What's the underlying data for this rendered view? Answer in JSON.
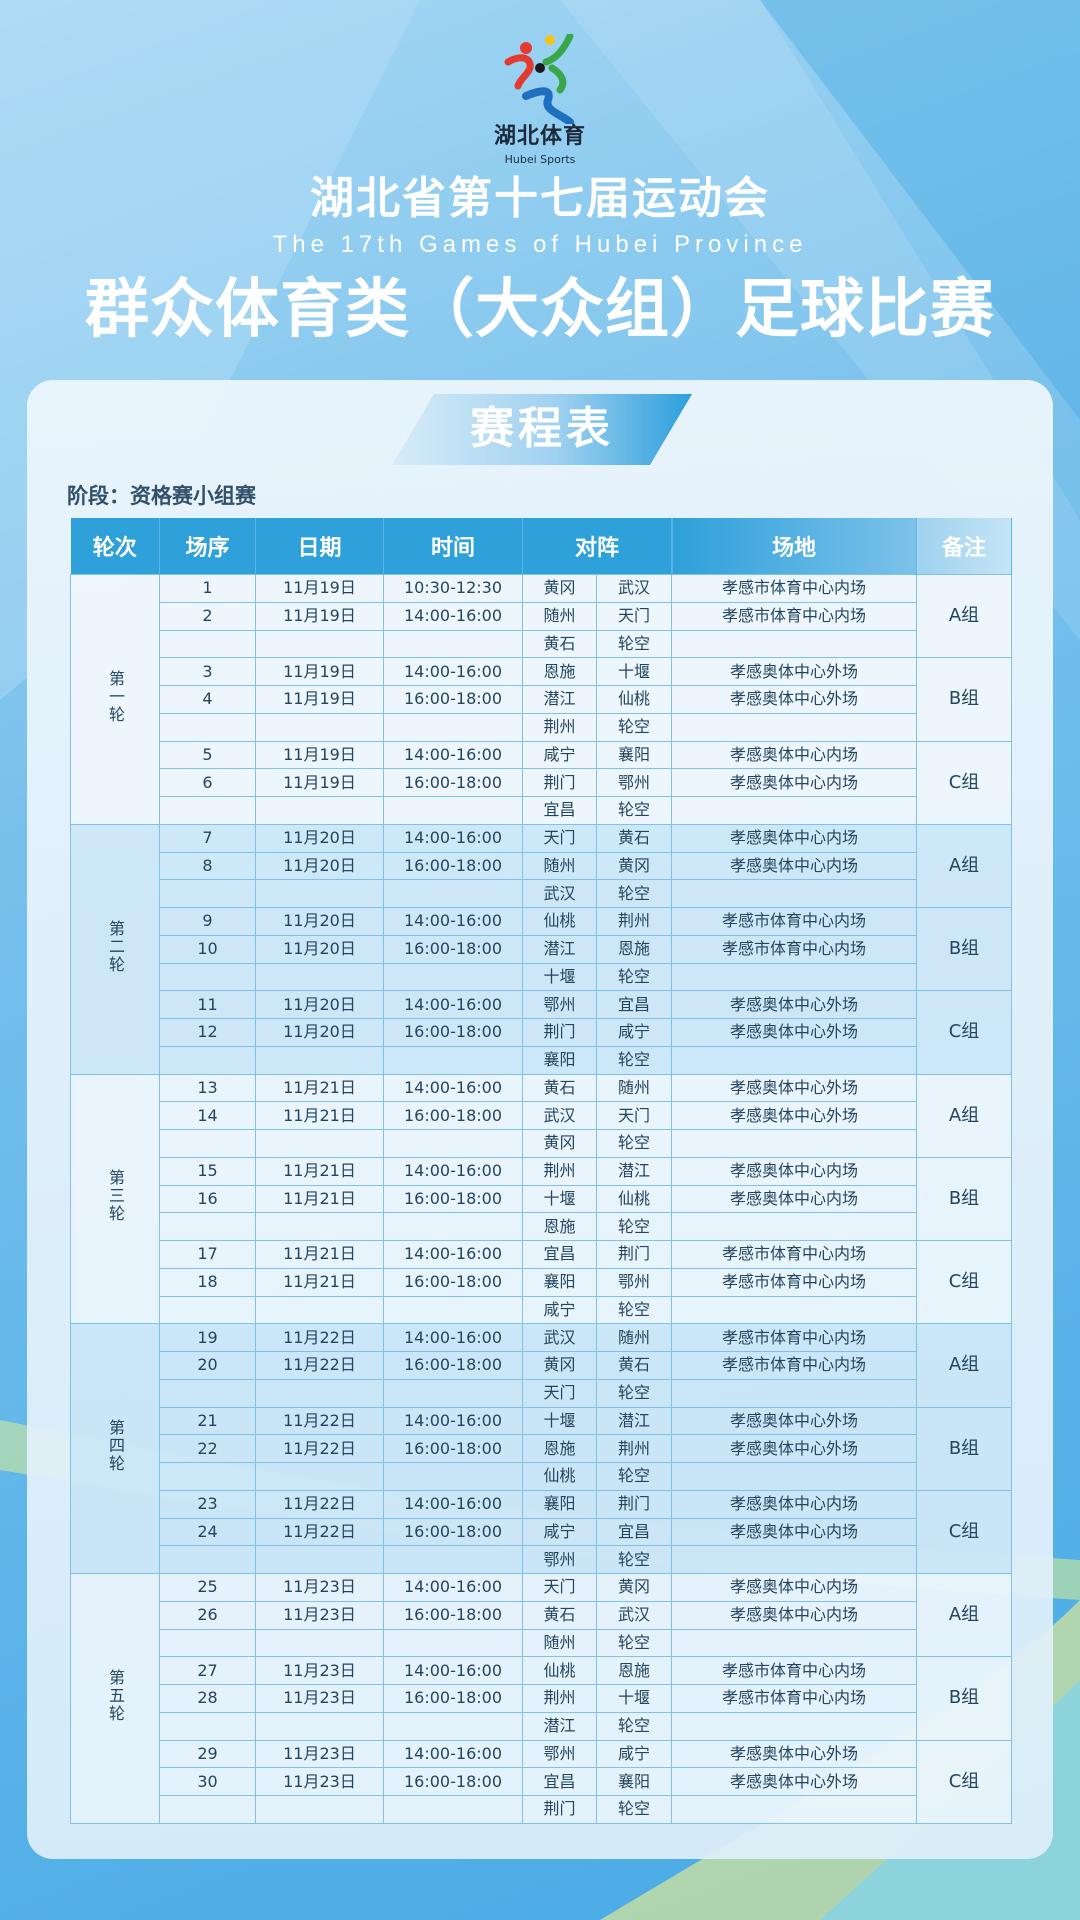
{
  "logo": {
    "cn": "湖北体育",
    "en": "Hubei Sports"
  },
  "header": {
    "title": "湖北省第十七届运动会",
    "subtitle_en": "The 17th Games of Hubei Province",
    "event": "群众体育类（大众组）足球比赛"
  },
  "banner": "赛程表",
  "stage": "阶段：资格赛小组赛",
  "columns": [
    "轮次",
    "场序",
    "日期",
    "时间",
    "对阵",
    "场地",
    "备注"
  ],
  "colors": {
    "header_blue": "#2ea0da",
    "text": "#24455f",
    "background": "#5cb4ea"
  },
  "rounds": [
    {
      "label": "第一轮",
      "groups": [
        {
          "label": "A组",
          "matches": [
            {
              "no": "1",
              "date": "11月19日",
              "time": "10:30-12:30",
              "home": "黄冈",
              "away": "武汉",
              "venue": "孝感市体育中心内场"
            },
            {
              "no": "2",
              "date": "11月19日",
              "time": "14:00-16:00",
              "home": "随州",
              "away": "天门",
              "venue": "孝感市体育中心内场"
            }
          ],
          "bye": {
            "team": "黄石",
            "label": "轮空"
          }
        },
        {
          "label": "B组",
          "matches": [
            {
              "no": "3",
              "date": "11月19日",
              "time": "14:00-16:00",
              "home": "恩施",
              "away": "十堰",
              "venue": "孝感奥体中心外场"
            },
            {
              "no": "4",
              "date": "11月19日",
              "time": "16:00-18:00",
              "home": "潜江",
              "away": "仙桃",
              "venue": "孝感奥体中心外场"
            }
          ],
          "bye": {
            "team": "荆州",
            "label": "轮空"
          }
        },
        {
          "label": "C组",
          "matches": [
            {
              "no": "5",
              "date": "11月19日",
              "time": "14:00-16:00",
              "home": "咸宁",
              "away": "襄阳",
              "venue": "孝感奥体中心内场"
            },
            {
              "no": "6",
              "date": "11月19日",
              "time": "16:00-18:00",
              "home": "荆门",
              "away": "鄂州",
              "venue": "孝感奥体中心内场"
            }
          ],
          "bye": {
            "team": "宜昌",
            "label": "轮空"
          }
        }
      ]
    },
    {
      "label": "第二轮",
      "groups": [
        {
          "label": "A组",
          "matches": [
            {
              "no": "7",
              "date": "11月20日",
              "time": "14:00-16:00",
              "home": "天门",
              "away": "黄石",
              "venue": "孝感奥体中心内场"
            },
            {
              "no": "8",
              "date": "11月20日",
              "time": "16:00-18:00",
              "home": "随州",
              "away": "黄冈",
              "venue": "孝感奥体中心内场"
            }
          ],
          "bye": {
            "team": "武汉",
            "label": "轮空"
          }
        },
        {
          "label": "B组",
          "matches": [
            {
              "no": "9",
              "date": "11月20日",
              "time": "14:00-16:00",
              "home": "仙桃",
              "away": "荆州",
              "venue": "孝感市体育中心内场"
            },
            {
              "no": "10",
              "date": "11月20日",
              "time": "16:00-18:00",
              "home": "潜江",
              "away": "恩施",
              "venue": "孝感市体育中心内场"
            }
          ],
          "bye": {
            "team": "十堰",
            "label": "轮空"
          }
        },
        {
          "label": "C组",
          "matches": [
            {
              "no": "11",
              "date": "11月20日",
              "time": "14:00-16:00",
              "home": "鄂州",
              "away": "宜昌",
              "venue": "孝感奥体中心外场"
            },
            {
              "no": "12",
              "date": "11月20日",
              "time": "16:00-18:00",
              "home": "荆门",
              "away": "咸宁",
              "venue": "孝感奥体中心外场"
            }
          ],
          "bye": {
            "team": "襄阳",
            "label": "轮空"
          }
        }
      ]
    },
    {
      "label": "第三轮",
      "groups": [
        {
          "label": "A组",
          "matches": [
            {
              "no": "13",
              "date": "11月21日",
              "time": "14:00-16:00",
              "home": "黄石",
              "away": "随州",
              "venue": "孝感奥体中心外场"
            },
            {
              "no": "14",
              "date": "11月21日",
              "time": "16:00-18:00",
              "home": "武汉",
              "away": "天门",
              "venue": "孝感奥体中心外场"
            }
          ],
          "bye": {
            "team": "黄冈",
            "label": "轮空"
          }
        },
        {
          "label": "B组",
          "matches": [
            {
              "no": "15",
              "date": "11月21日",
              "time": "14:00-16:00",
              "home": "荆州",
              "away": "潜江",
              "venue": "孝感奥体中心内场"
            },
            {
              "no": "16",
              "date": "11月21日",
              "time": "16:00-18:00",
              "home": "十堰",
              "away": "仙桃",
              "venue": "孝感奥体中心内场"
            }
          ],
          "bye": {
            "team": "恩施",
            "label": "轮空"
          }
        },
        {
          "label": "C组",
          "matches": [
            {
              "no": "17",
              "date": "11月21日",
              "time": "14:00-16:00",
              "home": "宜昌",
              "away": "荆门",
              "venue": "孝感市体育中心内场"
            },
            {
              "no": "18",
              "date": "11月21日",
              "time": "16:00-18:00",
              "home": "襄阳",
              "away": "鄂州",
              "venue": "孝感市体育中心内场"
            }
          ],
          "bye": {
            "team": "咸宁",
            "label": "轮空"
          }
        }
      ]
    },
    {
      "label": "第四轮",
      "groups": [
        {
          "label": "A组",
          "matches": [
            {
              "no": "19",
              "date": "11月22日",
              "time": "14:00-16:00",
              "home": "武汉",
              "away": "随州",
              "venue": "孝感市体育中心内场"
            },
            {
              "no": "20",
              "date": "11月22日",
              "time": "16:00-18:00",
              "home": "黄冈",
              "away": "黄石",
              "venue": "孝感市体育中心内场"
            }
          ],
          "bye": {
            "team": "天门",
            "label": "轮空"
          }
        },
        {
          "label": "B组",
          "matches": [
            {
              "no": "21",
              "date": "11月22日",
              "time": "14:00-16:00",
              "home": "十堰",
              "away": "潜江",
              "venue": "孝感奥体中心外场"
            },
            {
              "no": "22",
              "date": "11月22日",
              "time": "16:00-18:00",
              "home": "恩施",
              "away": "荆州",
              "venue": "孝感奥体中心外场"
            }
          ],
          "bye": {
            "team": "仙桃",
            "label": "轮空"
          }
        },
        {
          "label": "C组",
          "matches": [
            {
              "no": "23",
              "date": "11月22日",
              "time": "14:00-16:00",
              "home": "襄阳",
              "away": "荆门",
              "venue": "孝感奥体中心内场"
            },
            {
              "no": "24",
              "date": "11月22日",
              "time": "16:00-18:00",
              "home": "咸宁",
              "away": "宜昌",
              "venue": "孝感奥体中心内场"
            }
          ],
          "bye": {
            "team": "鄂州",
            "label": "轮空"
          }
        }
      ]
    },
    {
      "label": "第五轮",
      "groups": [
        {
          "label": "A组",
          "matches": [
            {
              "no": "25",
              "date": "11月23日",
              "time": "14:00-16:00",
              "home": "天门",
              "away": "黄冈",
              "venue": "孝感奥体中心内场"
            },
            {
              "no": "26",
              "date": "11月23日",
              "time": "16:00-18:00",
              "home": "黄石",
              "away": "武汉",
              "venue": "孝感奥体中心内场"
            }
          ],
          "bye": {
            "team": "随州",
            "label": "轮空"
          }
        },
        {
          "label": "B组",
          "matches": [
            {
              "no": "27",
              "date": "11月23日",
              "time": "14:00-16:00",
              "home": "仙桃",
              "away": "恩施",
              "venue": "孝感市体育中心内场"
            },
            {
              "no": "28",
              "date": "11月23日",
              "time": "16:00-18:00",
              "home": "荆州",
              "away": "十堰",
              "venue": "孝感市体育中心内场"
            }
          ],
          "bye": {
            "team": "潜江",
            "label": "轮空"
          }
        },
        {
          "label": "C组",
          "matches": [
            {
              "no": "29",
              "date": "11月23日",
              "time": "14:00-16:00",
              "home": "鄂州",
              "away": "咸宁",
              "venue": "孝感奥体中心外场"
            },
            {
              "no": "30",
              "date": "11月23日",
              "time": "16:00-18:00",
              "home": "宜昌",
              "away": "襄阳",
              "venue": "孝感奥体中心外场"
            }
          ],
          "bye": {
            "team": "荆门",
            "label": "轮空"
          }
        }
      ]
    }
  ]
}
